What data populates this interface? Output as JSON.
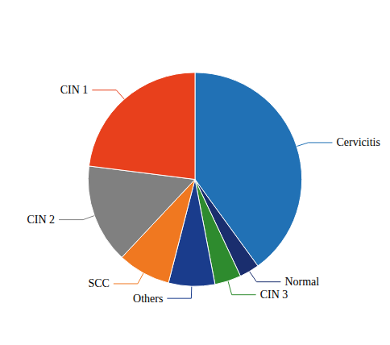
{
  "chart_data": {
    "type": "pie",
    "categories": [
      "Cervicitis",
      "Normal",
      "CIN 3",
      "Others",
      "SCC",
      "CIN 2",
      "CIN 1"
    ],
    "values": [
      40,
      3,
      4,
      7,
      8,
      15,
      23
    ],
    "colors": [
      "#2171B5",
      "#1A2E6E",
      "#2E8B2E",
      "#1A3C8C",
      "#F07820",
      "#808080",
      "#E8401C"
    ]
  }
}
